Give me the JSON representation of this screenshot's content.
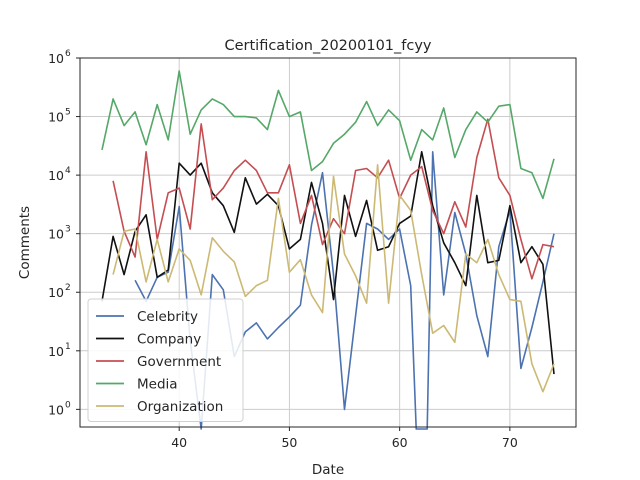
{
  "chart_data": {
    "type": "line",
    "title": "Certification_20200101_fcyy",
    "xlabel": "Date",
    "ylabel": "Comments",
    "yscale": "log",
    "xlim": [
      31,
      76
    ],
    "ylim": [
      0.5,
      1000000
    ],
    "x_ticks": [
      40,
      50,
      60,
      70
    ],
    "x_tick_labels": [
      "40",
      "50",
      "60",
      "70"
    ],
    "y_ticks": [
      1,
      10,
      100,
      1000,
      10000,
      100000,
      1000000
    ],
    "y_tick_labels": [
      {
        "base": "10",
        "exp": "0"
      },
      {
        "base": "10",
        "exp": "1"
      },
      {
        "base": "10",
        "exp": "2"
      },
      {
        "base": "10",
        "exp": "3"
      },
      {
        "base": "10",
        "exp": "4"
      },
      {
        "base": "10",
        "exp": "5"
      },
      {
        "base": "10",
        "exp": "6"
      }
    ],
    "grid": true,
    "legend_position": "lower-left",
    "series": [
      {
        "name": "Celebrity",
        "color": "#4c72b0",
        "points": [
          [
            36,
            160
          ],
          [
            37,
            70
          ],
          [
            38,
            180
          ],
          [
            39,
            220
          ],
          [
            40,
            2900
          ],
          [
            41,
            15
          ],
          [
            42,
            0.02
          ],
          [
            43,
            200
          ],
          [
            44,
            110
          ],
          [
            45,
            8
          ],
          [
            46,
            21
          ],
          [
            47,
            30
          ],
          [
            48,
            16
          ],
          [
            49,
            25
          ],
          [
            50,
            38
          ],
          [
            51,
            60
          ],
          [
            52,
            1400
          ],
          [
            53,
            11000
          ],
          [
            54,
            200
          ],
          [
            55,
            1
          ],
          [
            56,
            40
          ],
          [
            57,
            1500
          ],
          [
            58,
            1200
          ],
          [
            59,
            800
          ],
          [
            60,
            1200
          ],
          [
            61,
            130
          ],
          [
            61.5,
            0.01
          ],
          [
            62.5,
            0.01
          ],
          [
            63,
            25000
          ],
          [
            64,
            90
          ],
          [
            65,
            2300
          ],
          [
            66,
            450
          ],
          [
            67,
            40
          ],
          [
            68,
            8
          ],
          [
            69,
            600
          ],
          [
            70,
            2500
          ],
          [
            71,
            5
          ],
          [
            72,
            25
          ],
          [
            73,
            150
          ],
          [
            74,
            1000
          ]
        ]
      },
      {
        "name": "Company",
        "color": "#111111",
        "points": [
          [
            33,
            70
          ],
          [
            34,
            900
          ],
          [
            35,
            200
          ],
          [
            36,
            1100
          ],
          [
            37,
            2100
          ],
          [
            38,
            180
          ],
          [
            39,
            240
          ],
          [
            40,
            16000
          ],
          [
            41,
            10000
          ],
          [
            42,
            16000
          ],
          [
            43,
            5000
          ],
          [
            44,
            3000
          ],
          [
            45,
            1050
          ],
          [
            46,
            9000
          ],
          [
            47,
            3200
          ],
          [
            48,
            4700
          ],
          [
            49,
            3000
          ],
          [
            50,
            550
          ],
          [
            51,
            800
          ],
          [
            52,
            7500
          ],
          [
            53,
            1500
          ],
          [
            54,
            75
          ],
          [
            55,
            4500
          ],
          [
            56,
            900
          ],
          [
            57,
            3700
          ],
          [
            58,
            520
          ],
          [
            59,
            600
          ],
          [
            60,
            1500
          ],
          [
            61,
            2000
          ],
          [
            62,
            25000
          ],
          [
            63,
            3000
          ],
          [
            64,
            700
          ],
          [
            65,
            320
          ],
          [
            66,
            130
          ],
          [
            67,
            4500
          ],
          [
            68,
            320
          ],
          [
            69,
            350
          ],
          [
            70,
            3000
          ],
          [
            71,
            320
          ],
          [
            72,
            600
          ],
          [
            73,
            300
          ],
          [
            74,
            4
          ]
        ]
      },
      {
        "name": "Government",
        "color": "#c44e52",
        "points": [
          [
            34,
            8000
          ],
          [
            35,
            1100
          ],
          [
            36,
            400
          ],
          [
            37,
            25000
          ],
          [
            38,
            800
          ],
          [
            39,
            5000
          ],
          [
            40,
            6000
          ],
          [
            41,
            1200
          ],
          [
            42,
            75000
          ],
          [
            43,
            3800
          ],
          [
            44,
            6000
          ],
          [
            45,
            12000
          ],
          [
            46,
            18000
          ],
          [
            47,
            12000
          ],
          [
            48,
            5000
          ],
          [
            49,
            5000
          ],
          [
            50,
            15000
          ],
          [
            51,
            1500
          ],
          [
            52,
            4500
          ],
          [
            53,
            650
          ],
          [
            54,
            1800
          ],
          [
            55,
            1000
          ],
          [
            56,
            12000
          ],
          [
            57,
            13000
          ],
          [
            58,
            9000
          ],
          [
            59,
            18000
          ],
          [
            60,
            4000
          ],
          [
            61,
            10000
          ],
          [
            62,
            14000
          ],
          [
            63,
            2500
          ],
          [
            64,
            1000
          ],
          [
            65,
            3500
          ],
          [
            66,
            1300
          ],
          [
            67,
            20000
          ],
          [
            68,
            90000
          ],
          [
            69,
            9000
          ],
          [
            70,
            4500
          ],
          [
            71,
            800
          ],
          [
            72,
            170
          ],
          [
            73,
            650
          ],
          [
            74,
            600
          ]
        ]
      },
      {
        "name": "Media",
        "color": "#55a868",
        "points": [
          [
            33,
            27000
          ],
          [
            34,
            200000
          ],
          [
            35,
            70000
          ],
          [
            36,
            120000
          ],
          [
            37,
            33000
          ],
          [
            38,
            160000
          ],
          [
            39,
            40000
          ],
          [
            40,
            600000
          ],
          [
            41,
            50000
          ],
          [
            42,
            130000
          ],
          [
            43,
            200000
          ],
          [
            44,
            160000
          ],
          [
            45,
            100000
          ],
          [
            46,
            100000
          ],
          [
            47,
            95000
          ],
          [
            48,
            60000
          ],
          [
            49,
            280000
          ],
          [
            50,
            100000
          ],
          [
            51,
            120000
          ],
          [
            52,
            12000
          ],
          [
            53,
            17000
          ],
          [
            54,
            35000
          ],
          [
            55,
            50000
          ],
          [
            56,
            80000
          ],
          [
            57,
            180000
          ],
          [
            58,
            70000
          ],
          [
            59,
            130000
          ],
          [
            60,
            85000
          ],
          [
            61,
            18000
          ],
          [
            62,
            60000
          ],
          [
            63,
            40000
          ],
          [
            64,
            140000
          ],
          [
            65,
            20000
          ],
          [
            66,
            60000
          ],
          [
            67,
            120000
          ],
          [
            68,
            80000
          ],
          [
            69,
            150000
          ],
          [
            70,
            160000
          ],
          [
            71,
            13000
          ],
          [
            72,
            11000
          ],
          [
            73,
            4000
          ],
          [
            74,
            19000
          ]
        ]
      },
      {
        "name": "Organization",
        "color": "#ccb974",
        "points": [
          [
            34,
            200
          ],
          [
            35,
            1100
          ],
          [
            36,
            1200
          ],
          [
            37,
            150
          ],
          [
            38,
            800
          ],
          [
            39,
            150
          ],
          [
            40,
            550
          ],
          [
            41,
            350
          ],
          [
            42,
            90
          ],
          [
            43,
            850
          ],
          [
            44,
            500
          ],
          [
            45,
            330
          ],
          [
            46,
            85
          ],
          [
            47,
            130
          ],
          [
            48,
            160
          ],
          [
            49,
            4000
          ],
          [
            50,
            220
          ],
          [
            51,
            360
          ],
          [
            52,
            90
          ],
          [
            53,
            45
          ],
          [
            54,
            9500
          ],
          [
            55,
            450
          ],
          [
            56,
            190
          ],
          [
            57,
            65
          ],
          [
            58,
            15000
          ],
          [
            59,
            65
          ],
          [
            60,
            4500
          ],
          [
            61,
            2500
          ],
          [
            62,
            200
          ],
          [
            63,
            20
          ],
          [
            64,
            27
          ],
          [
            65,
            14
          ],
          [
            66,
            450
          ],
          [
            67,
            320
          ],
          [
            68,
            800
          ],
          [
            69,
            200
          ],
          [
            70,
            75
          ],
          [
            71,
            70
          ],
          [
            72,
            6
          ],
          [
            73,
            2
          ],
          [
            74,
            6
          ]
        ]
      }
    ]
  }
}
